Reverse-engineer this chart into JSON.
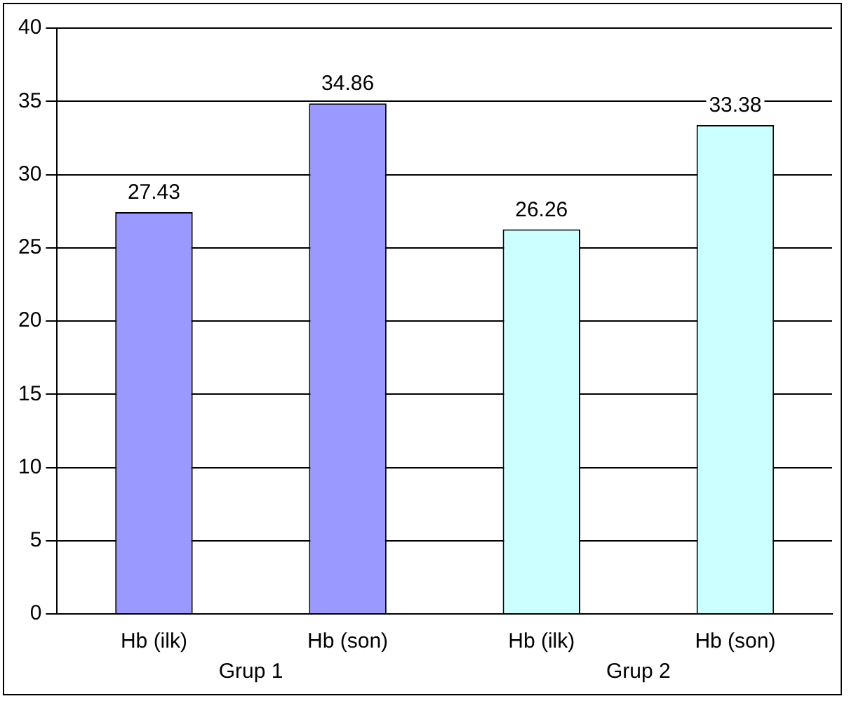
{
  "chart_data": {
    "type": "bar",
    "categories": [
      "Hb (ilk)",
      "Hb (son)",
      "Hb (ilk)",
      "Hb (son)"
    ],
    "values": [
      27.43,
      34.86,
      26.26,
      33.38
    ],
    "colors": [
      "#9999ff",
      "#9999ff",
      "#ccffff",
      "#ccffff"
    ],
    "ylim": [
      0,
      40
    ],
    "yticks": [
      0,
      5,
      10,
      15,
      20,
      25,
      30,
      35,
      40
    ],
    "grid": "y",
    "legend": false,
    "data_labels": true,
    "annotations": [
      "Grup 1",
      "Grup 2"
    ]
  }
}
